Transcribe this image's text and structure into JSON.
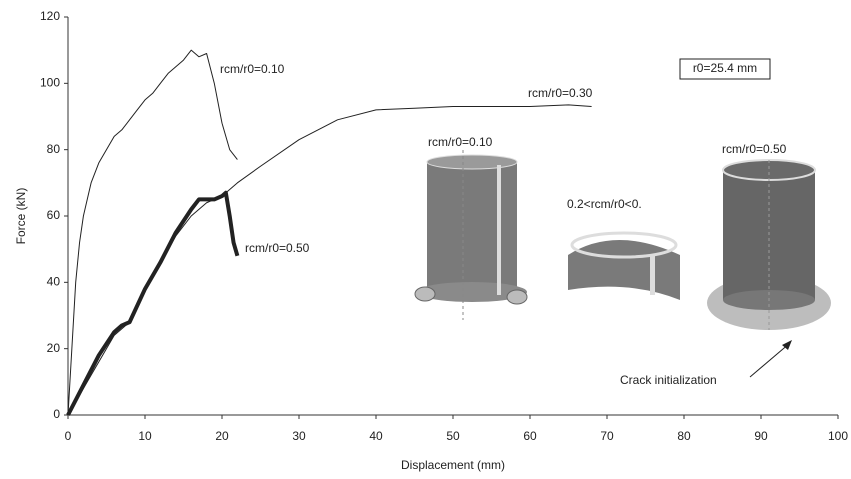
{
  "chart_data": {
    "type": "line",
    "x_label": "Displacement (mm)",
    "y_label": "Force (kN)",
    "xlim": [
      0,
      100
    ],
    "xticks": [
      0,
      10,
      20,
      30,
      40,
      50,
      60,
      70,
      80,
      90,
      100
    ],
    "ylim": [
      0,
      120
    ],
    "yticks": [
      0,
      20,
      40,
      60,
      80,
      100,
      120
    ],
    "grid": false,
    "series": [
      {
        "name": "rcm/r0=0.10",
        "color": "#222222",
        "x": [
          0,
          0.5,
          1,
          1.5,
          2,
          2.5,
          3,
          4,
          5,
          6,
          7,
          8,
          9,
          10,
          11,
          12,
          13,
          14,
          15,
          16,
          17,
          18,
          19,
          20,
          21,
          22
        ],
        "values": [
          0,
          20,
          40,
          52,
          60,
          65,
          70,
          76,
          80,
          84,
          86,
          89,
          92,
          95,
          97,
          100,
          103,
          105,
          107,
          110,
          108,
          109,
          100,
          88,
          80,
          77
        ]
      },
      {
        "name": "rcm/r0=0.30",
        "color": "#222222",
        "x": [
          0,
          2,
          4,
          6,
          8,
          10,
          12,
          14,
          16,
          18,
          20,
          22,
          25,
          30,
          35,
          40,
          45,
          50,
          55,
          60,
          65,
          68
        ],
        "values": [
          0,
          8,
          16,
          24,
          28,
          38,
          46,
          54,
          60,
          64,
          66,
          70,
          75,
          83,
          89,
          92,
          92.5,
          93,
          93,
          93,
          93.5,
          93
        ]
      },
      {
        "name": "rcm/r0=0.50",
        "color": "#222222",
        "x": [
          0,
          2,
          4,
          6,
          7,
          8,
          10,
          12,
          14,
          16,
          17,
          18,
          19,
          20,
          20.5,
          21,
          21.5,
          22
        ],
        "values": [
          0,
          9,
          18,
          25,
          27,
          28,
          38,
          46,
          55,
          62,
          65,
          65,
          65,
          66,
          67,
          60,
          52,
          48
        ]
      }
    ],
    "annotations": [
      "r0=25.4 mm",
      "rcm/r0=0.10",
      "0.2<rcm/r0<0.",
      "rcm/r0=0.50",
      "Crack initialization"
    ]
  }
}
